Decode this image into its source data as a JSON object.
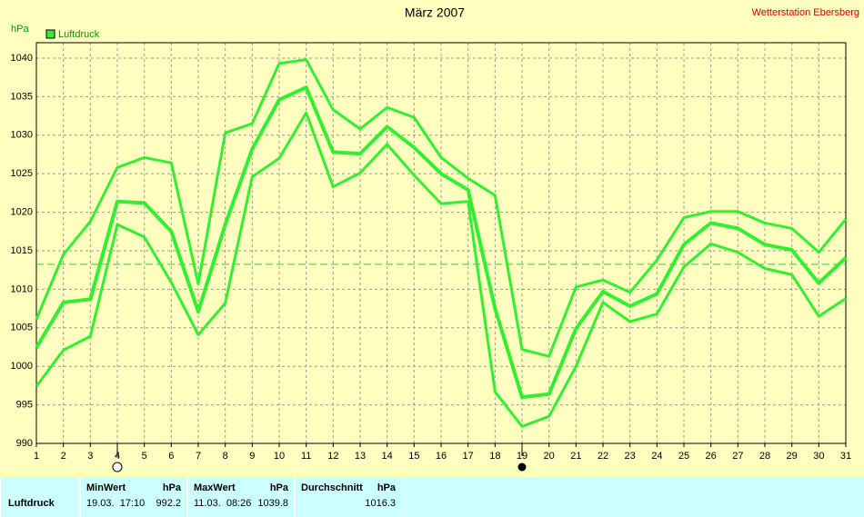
{
  "chart_data": {
    "type": "line",
    "title": "März 2007",
    "station": "Wetterstation Ebersberg",
    "y_label": "hPa",
    "x": [
      1,
      2,
      3,
      4,
      5,
      6,
      7,
      8,
      9,
      10,
      11,
      12,
      13,
      14,
      15,
      16,
      17,
      18,
      19,
      20,
      21,
      22,
      23,
      24,
      25,
      26,
      27,
      28,
      29,
      30,
      31
    ],
    "series": [
      {
        "color": "#33ee33",
        "width": 3,
        "values": [
          1006.1,
          1014.5,
          1018.8,
          1025.8,
          1027.1,
          1026.4,
          1010.7,
          1030.3,
          1031.5,
          1039.3,
          1039.8,
          1033.3,
          1030.8,
          1033.6,
          1032.3,
          1027.1,
          1024.4,
          1022.2,
          1002.2,
          1001.3,
          1010.3,
          1011.2,
          1009.6,
          1013.8,
          1019.3,
          1020.1,
          1020.1,
          1018.6,
          1017.9,
          1014.8,
          1019.1
        ]
      },
      {
        "name": "Luftdruck",
        "color": "#33ee33",
        "width": 4,
        "values": [
          1002.4,
          1008.3,
          1008.7,
          1021.4,
          1021.2,
          1017.5,
          1007.1,
          1018.4,
          1028.2,
          1034.6,
          1036.2,
          1027.8,
          1027.6,
          1031.1,
          1028.4,
          1025.0,
          1022.9,
          1007.5,
          996.0,
          996.4,
          1004.9,
          1009.7,
          1007.8,
          1009.4,
          1015.8,
          1018.6,
          1017.9,
          1015.8,
          1015.1,
          1010.8,
          1014.1
        ]
      },
      {
        "color": "#33ee33",
        "width": 3,
        "values": [
          997.4,
          1002.1,
          1003.9,
          1018.4,
          1016.8,
          1010.9,
          1004.1,
          1008.2,
          1024.6,
          1027.0,
          1032.9,
          1023.3,
          1025.1,
          1028.8,
          1024.8,
          1021.1,
          1021.4,
          996.7,
          992.2,
          993.5,
          1000.0,
          1008.3,
          1005.8,
          1006.8,
          1012.9,
          1015.9,
          1014.8,
          1012.7,
          1011.9,
          1006.5,
          1008.8
        ]
      }
    ],
    "reference_line": 1013.25,
    "markers": [
      {
        "x": 4,
        "filled": false
      },
      {
        "x": 19,
        "filled": true
      }
    ],
    "xlim": [
      1,
      31
    ],
    "xticks": [
      1,
      2,
      3,
      4,
      5,
      6,
      7,
      8,
      9,
      10,
      11,
      12,
      13,
      14,
      15,
      16,
      17,
      18,
      19,
      20,
      21,
      22,
      23,
      24,
      25,
      26,
      27,
      28,
      29,
      30,
      31
    ],
    "ylim": [
      990,
      1042
    ],
    "yticks": [
      990,
      995,
      1000,
      1005,
      1010,
      1015,
      1020,
      1025,
      1030,
      1035,
      1040
    ],
    "grid": true,
    "legend": "top-left"
  },
  "table": {
    "columns": [
      {
        "title": "MinWert",
        "unit": "hPa"
      },
      {
        "title": "MaxWert",
        "unit": "hPa"
      },
      {
        "title": "Durchschnitt",
        "unit": "hPa"
      }
    ],
    "rows": [
      {
        "label": "Luftdruck",
        "cells": [
          {
            "time": "19.03.  17:10",
            "value": "992.2"
          },
          {
            "time": "11.03.  08:26",
            "value": "1039.8"
          },
          {
            "value": "1016.3"
          }
        ]
      }
    ]
  }
}
